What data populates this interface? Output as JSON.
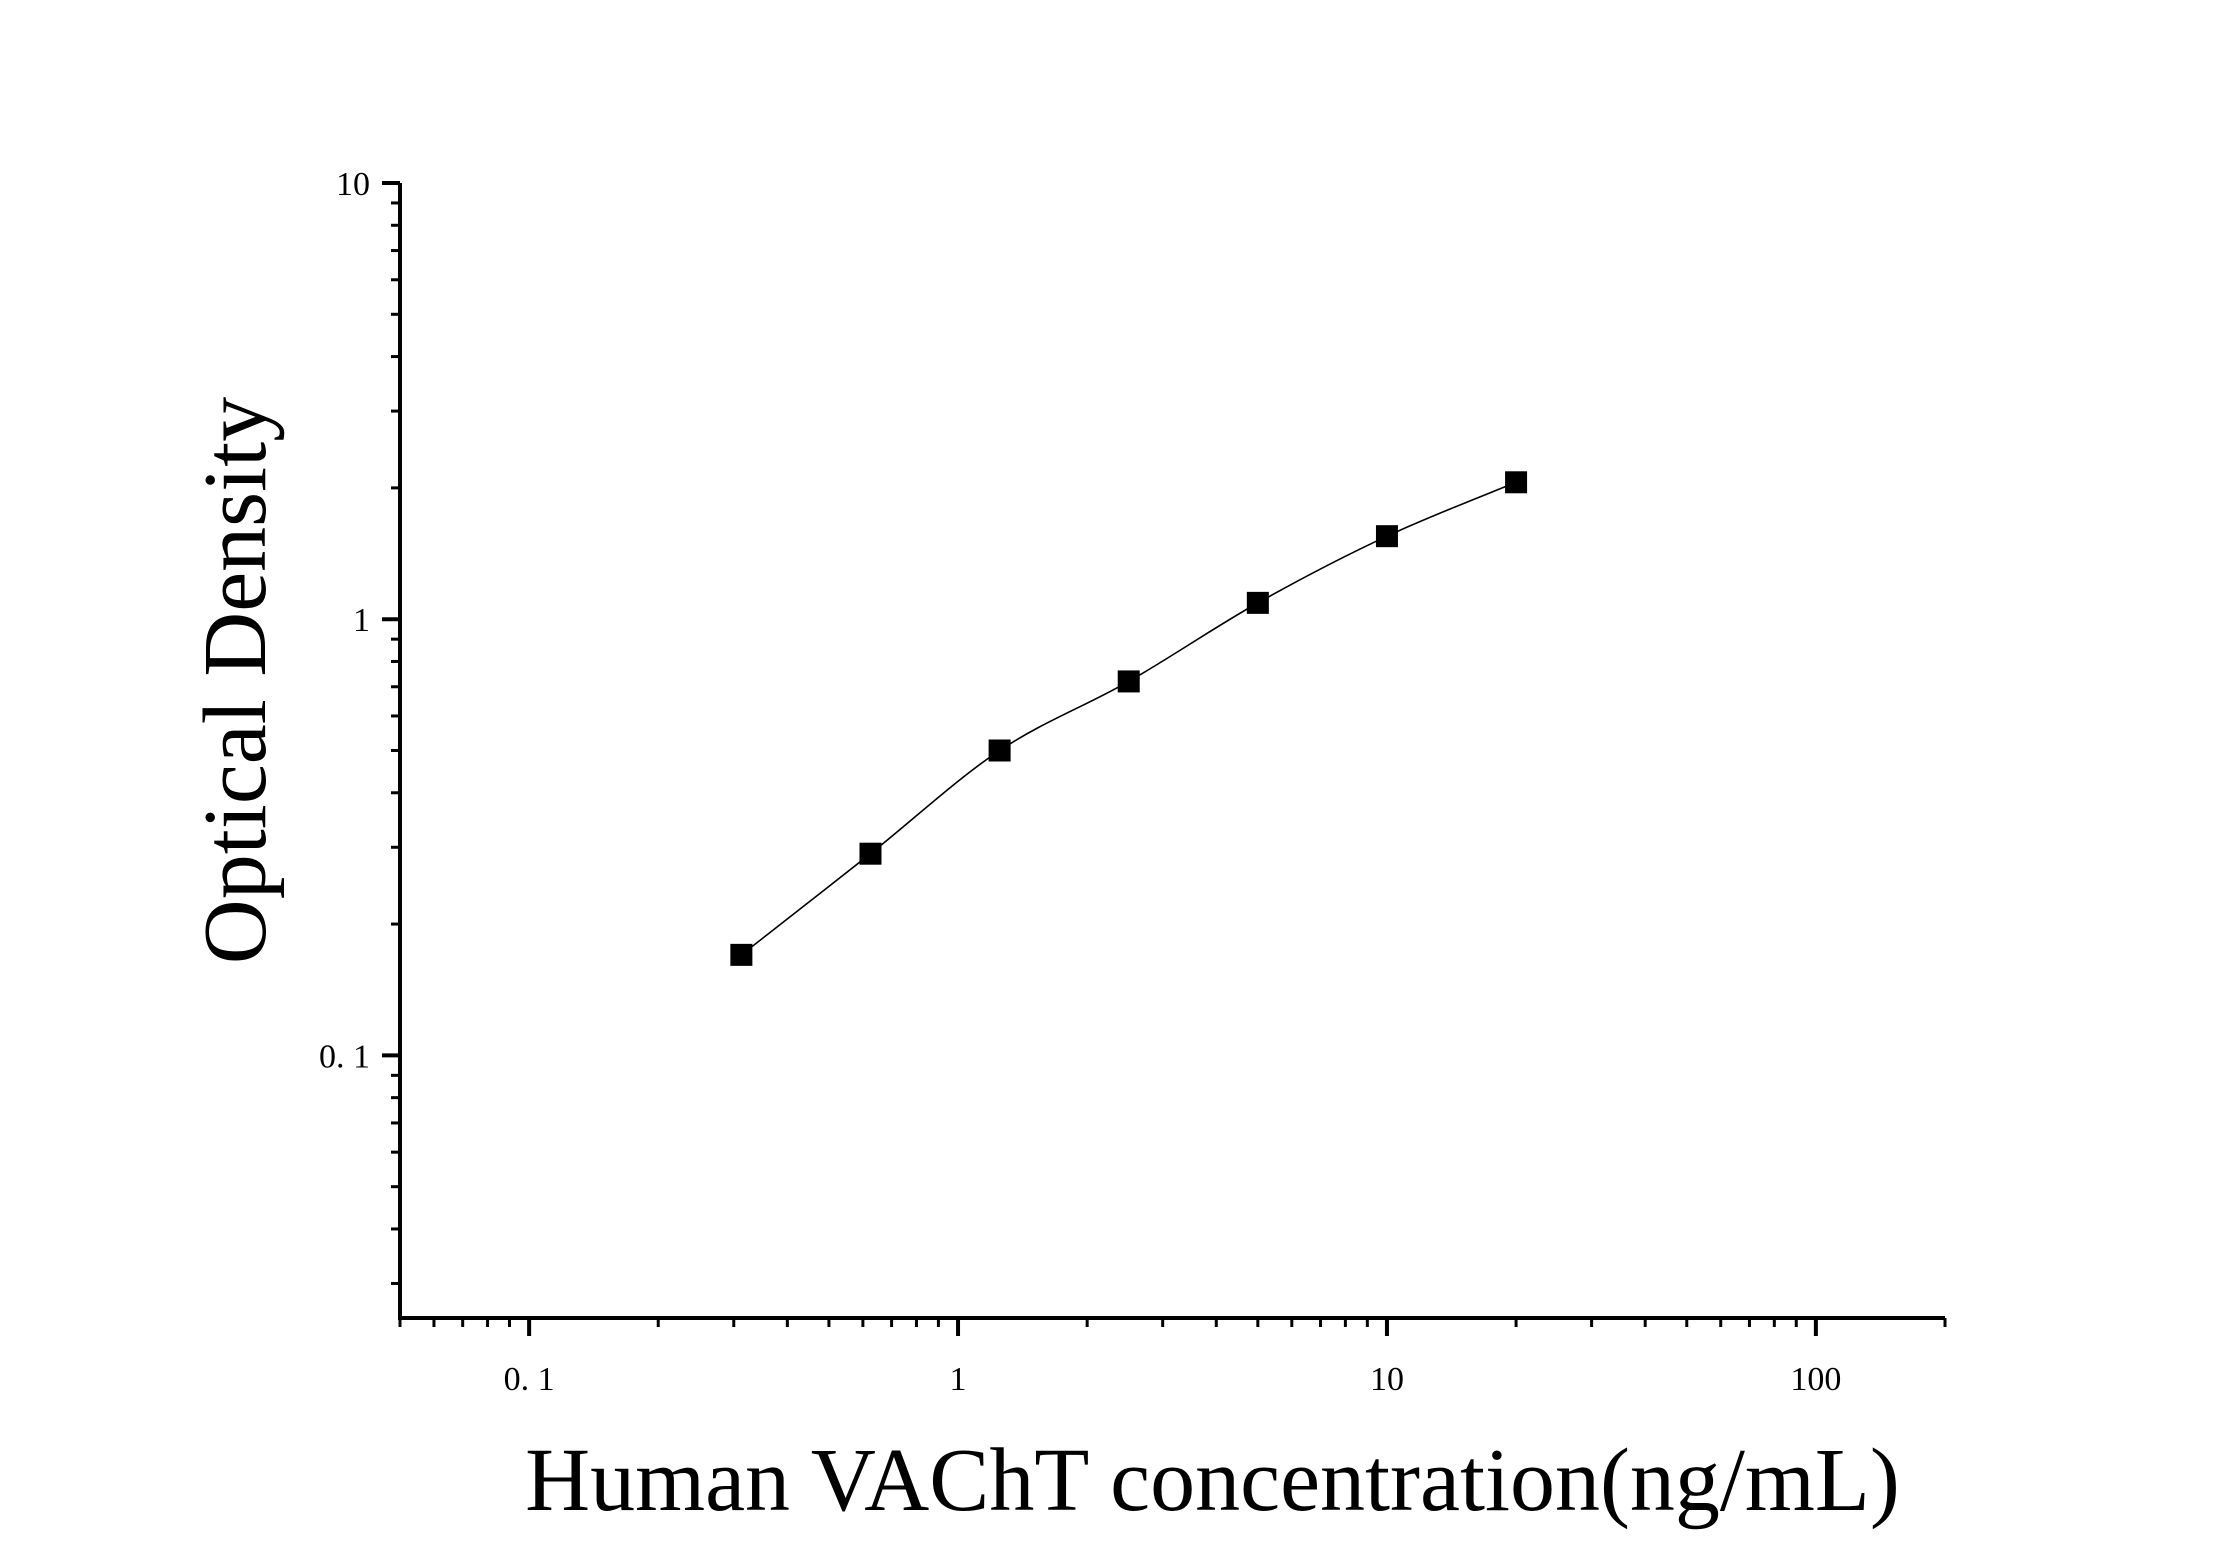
{
  "chart_data": {
    "type": "scatter",
    "title": "",
    "xlabel": "Human VAChT concentration(ng/mL)",
    "ylabel": "Optical Density",
    "x_scale": "log",
    "y_scale": "log",
    "xlim": [
      0.05,
      200
    ],
    "ylim": [
      0.025,
      10
    ],
    "x_ticks": [
      {
        "value": 0.1,
        "label": "0. 1"
      },
      {
        "value": 1,
        "label": "1"
      },
      {
        "value": 10,
        "label": "10"
      },
      {
        "value": 100,
        "label": "100"
      }
    ],
    "y_ticks": [
      {
        "value": 0.1,
        "label": "0. 1"
      },
      {
        "value": 1,
        "label": "1"
      },
      {
        "value": 10,
        "label": "10"
      }
    ],
    "grid": false,
    "legend": "none",
    "marker": "square",
    "fit_line": true,
    "color": "#000000",
    "series": [
      {
        "x": [
          0.3125,
          0.625,
          1.25,
          2.5,
          5,
          10,
          20
        ],
        "y": [
          0.17,
          0.29,
          0.5,
          0.72,
          1.09,
          1.55,
          2.06
        ]
      }
    ]
  }
}
